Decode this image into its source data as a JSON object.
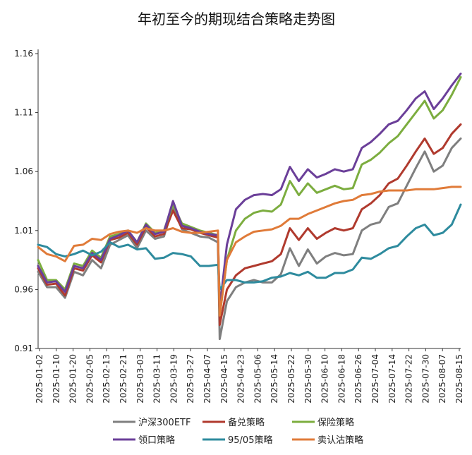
{
  "chart_data": {
    "type": "line",
    "title": "年初至今的期现结合策略走势图",
    "xlabel": "",
    "ylabel": "",
    "ylim": [
      0.91,
      1.16
    ],
    "y_ticks": [
      "0.91",
      "0.96",
      "1.01",
      "1.06",
      "1.11",
      "1.16"
    ],
    "x_ticks": [
      "2025-01-02",
      "2025-01-10",
      "2025-01-20",
      "2025-02-05",
      "2025-02-13",
      "2025-02-21",
      "2025-03-03",
      "2025-03-11",
      "2025-03-19",
      "2025-03-27",
      "2025-04-07",
      "2025-04-15",
      "2025-04-23",
      "2025-05-06",
      "2025-05-14",
      "2025-05-22",
      "2025-05-30",
      "2025-06-10",
      "2025-06-18",
      "2025-06-26",
      "2025-07-04",
      "2025-07-14",
      "2025-07-22",
      "2025-07-30",
      "2025-08-07",
      "2025-08-15"
    ],
    "grid": false,
    "legend_position": "bottom",
    "series": [
      {
        "name": "沪深300ETF",
        "color": "#7f7f7f",
        "points": [
          [
            0,
            0.975
          ],
          [
            1,
            0.962
          ],
          [
            2,
            0.962
          ],
          [
            3,
            0.953
          ],
          [
            4,
            0.975
          ],
          [
            5,
            0.972
          ],
          [
            6,
            0.985
          ],
          [
            7,
            0.978
          ],
          [
            8,
            0.998
          ],
          [
            9,
            1.002
          ],
          [
            10,
            1.006
          ],
          [
            11,
            0.995
          ],
          [
            12,
            1.01
          ],
          [
            13,
            1.003
          ],
          [
            14,
            1.005
          ],
          [
            15,
            1.03
          ],
          [
            16,
            1.011
          ],
          [
            17,
            1.008
          ],
          [
            18,
            1.005
          ],
          [
            19,
            1.004
          ],
          [
            20,
            1.0
          ],
          [
            20.2,
            0.918
          ],
          [
            21,
            0.95
          ],
          [
            22,
            0.962
          ],
          [
            23,
            0.966
          ],
          [
            24,
            0.968
          ],
          [
            25,
            0.966
          ],
          [
            26,
            0.966
          ],
          [
            27,
            0.973
          ],
          [
            28,
            0.995
          ],
          [
            29,
            0.98
          ],
          [
            30,
            0.994
          ],
          [
            31,
            0.982
          ],
          [
            32,
            0.988
          ],
          [
            33,
            0.991
          ],
          [
            34,
            0.989
          ],
          [
            35,
            0.99
          ],
          [
            36,
            1.01
          ],
          [
            37,
            1.015
          ],
          [
            38,
            1.017
          ],
          [
            39,
            1.03
          ],
          [
            40,
            1.033
          ],
          [
            41,
            1.048
          ],
          [
            42,
            1.063
          ],
          [
            43,
            1.077
          ],
          [
            44,
            1.06
          ],
          [
            45,
            1.065
          ],
          [
            46,
            1.08
          ],
          [
            47,
            1.088
          ]
        ]
      },
      {
        "name": "备兑策略",
        "color": "#b03a2e",
        "points": [
          [
            0,
            0.978
          ],
          [
            1,
            0.964
          ],
          [
            2,
            0.965
          ],
          [
            3,
            0.955
          ],
          [
            4,
            0.978
          ],
          [
            5,
            0.976
          ],
          [
            6,
            0.989
          ],
          [
            7,
            0.983
          ],
          [
            8,
            1.002
          ],
          [
            9,
            1.004
          ],
          [
            10,
            1.008
          ],
          [
            11,
            0.998
          ],
          [
            12,
            1.013
          ],
          [
            13,
            1.005
          ],
          [
            14,
            1.007
          ],
          [
            15,
            1.027
          ],
          [
            16,
            1.012
          ],
          [
            17,
            1.011
          ],
          [
            18,
            1.008
          ],
          [
            19,
            1.006
          ],
          [
            20,
            1.004
          ],
          [
            20.2,
            0.93
          ],
          [
            21,
            0.96
          ],
          [
            22,
            0.972
          ],
          [
            23,
            0.978
          ],
          [
            24,
            0.98
          ],
          [
            25,
            0.982
          ],
          [
            26,
            0.984
          ],
          [
            27,
            0.99
          ],
          [
            28,
            1.012
          ],
          [
            29,
            1.002
          ],
          [
            30,
            1.012
          ],
          [
            31,
            1.003
          ],
          [
            32,
            1.008
          ],
          [
            33,
            1.012
          ],
          [
            34,
            1.01
          ],
          [
            35,
            1.012
          ],
          [
            36,
            1.028
          ],
          [
            37,
            1.033
          ],
          [
            38,
            1.04
          ],
          [
            39,
            1.05
          ],
          [
            40,
            1.054
          ],
          [
            41,
            1.065
          ],
          [
            42,
            1.077
          ],
          [
            43,
            1.088
          ],
          [
            44,
            1.075
          ],
          [
            45,
            1.08
          ],
          [
            46,
            1.092
          ],
          [
            47,
            1.1
          ]
        ]
      },
      {
        "name": "保险策略",
        "color": "#7cad3f",
        "points": [
          [
            0,
            0.985
          ],
          [
            1,
            0.968
          ],
          [
            2,
            0.968
          ],
          [
            3,
            0.96
          ],
          [
            4,
            0.982
          ],
          [
            5,
            0.98
          ],
          [
            6,
            0.993
          ],
          [
            7,
            0.987
          ],
          [
            8,
            1.005
          ],
          [
            9,
            1.007
          ],
          [
            10,
            1.01
          ],
          [
            11,
            1.0
          ],
          [
            12,
            1.016
          ],
          [
            13,
            1.008
          ],
          [
            14,
            1.01
          ],
          [
            15,
            1.032
          ],
          [
            16,
            1.016
          ],
          [
            17,
            1.013
          ],
          [
            18,
            1.01
          ],
          [
            19,
            1.008
          ],
          [
            20,
            1.006
          ],
          [
            20.2,
            0.938
          ],
          [
            21,
            0.985
          ],
          [
            22,
            1.01
          ],
          [
            23,
            1.02
          ],
          [
            24,
            1.025
          ],
          [
            25,
            1.027
          ],
          [
            26,
            1.026
          ],
          [
            27,
            1.032
          ],
          [
            28,
            1.052
          ],
          [
            29,
            1.04
          ],
          [
            30,
            1.05
          ],
          [
            31,
            1.042
          ],
          [
            32,
            1.045
          ],
          [
            33,
            1.048
          ],
          [
            34,
            1.045
          ],
          [
            35,
            1.046
          ],
          [
            36,
            1.066
          ],
          [
            37,
            1.07
          ],
          [
            38,
            1.076
          ],
          [
            39,
            1.084
          ],
          [
            40,
            1.09
          ],
          [
            41,
            1.1
          ],
          [
            42,
            1.11
          ],
          [
            43,
            1.12
          ],
          [
            44,
            1.105
          ],
          [
            45,
            1.112
          ],
          [
            46,
            1.125
          ],
          [
            47,
            1.14
          ]
        ]
      },
      {
        "name": "领口策略",
        "color": "#6b3f99",
        "points": [
          [
            0,
            0.98
          ],
          [
            1,
            0.966
          ],
          [
            2,
            0.967
          ],
          [
            3,
            0.958
          ],
          [
            4,
            0.98
          ],
          [
            5,
            0.978
          ],
          [
            6,
            0.991
          ],
          [
            7,
            0.985
          ],
          [
            8,
            1.003
          ],
          [
            9,
            1.006
          ],
          [
            10,
            1.01
          ],
          [
            11,
            1.0
          ],
          [
            12,
            1.015
          ],
          [
            13,
            1.007
          ],
          [
            14,
            1.009
          ],
          [
            15,
            1.035
          ],
          [
            16,
            1.014
          ],
          [
            17,
            1.012
          ],
          [
            18,
            1.009
          ],
          [
            19,
            1.007
          ],
          [
            20,
            1.006
          ],
          [
            20.2,
            0.944
          ],
          [
            21,
            0.998
          ],
          [
            22,
            1.028
          ],
          [
            23,
            1.036
          ],
          [
            24,
            1.04
          ],
          [
            25,
            1.041
          ],
          [
            26,
            1.04
          ],
          [
            27,
            1.045
          ],
          [
            28,
            1.064
          ],
          [
            29,
            1.052
          ],
          [
            30,
            1.062
          ],
          [
            31,
            1.055
          ],
          [
            32,
            1.058
          ],
          [
            33,
            1.062
          ],
          [
            34,
            1.06
          ],
          [
            35,
            1.062
          ],
          [
            36,
            1.08
          ],
          [
            37,
            1.085
          ],
          [
            38,
            1.092
          ],
          [
            39,
            1.1
          ],
          [
            40,
            1.103
          ],
          [
            41,
            1.112
          ],
          [
            42,
            1.122
          ],
          [
            43,
            1.128
          ],
          [
            44,
            1.113
          ],
          [
            45,
            1.122
          ],
          [
            46,
            1.133
          ],
          [
            47,
            1.143
          ]
        ]
      },
      {
        "name": "95/05策略",
        "color": "#2e8b9e",
        "points": [
          [
            0,
            0.998
          ],
          [
            1,
            0.996
          ],
          [
            2,
            0.99
          ],
          [
            3,
            0.988
          ],
          [
            4,
            0.99
          ],
          [
            5,
            0.993
          ],
          [
            6,
            0.989
          ],
          [
            7,
            0.992
          ],
          [
            8,
            1.0
          ],
          [
            9,
            0.996
          ],
          [
            10,
            0.998
          ],
          [
            11,
            0.994
          ],
          [
            12,
            0.995
          ],
          [
            13,
            0.986
          ],
          [
            14,
            0.987
          ],
          [
            15,
            0.991
          ],
          [
            16,
            0.99
          ],
          [
            17,
            0.988
          ],
          [
            18,
            0.98
          ],
          [
            19,
            0.98
          ],
          [
            20,
            0.981
          ],
          [
            20.2,
            0.96
          ],
          [
            21,
            0.968
          ],
          [
            22,
            0.968
          ],
          [
            23,
            0.966
          ],
          [
            24,
            0.966
          ],
          [
            25,
            0.967
          ],
          [
            26,
            0.97
          ],
          [
            27,
            0.971
          ],
          [
            28,
            0.974
          ],
          [
            29,
            0.972
          ],
          [
            30,
            0.975
          ],
          [
            31,
            0.97
          ],
          [
            32,
            0.97
          ],
          [
            33,
            0.974
          ],
          [
            34,
            0.974
          ],
          [
            35,
            0.977
          ],
          [
            36,
            0.987
          ],
          [
            37,
            0.986
          ],
          [
            38,
            0.99
          ],
          [
            39,
            0.995
          ],
          [
            40,
            0.997
          ],
          [
            41,
            1.005
          ],
          [
            42,
            1.012
          ],
          [
            43,
            1.015
          ],
          [
            44,
            1.006
          ],
          [
            45,
            1.008
          ],
          [
            46,
            1.015
          ],
          [
            47,
            1.032
          ]
        ]
      },
      {
        "name": "卖认沽策略",
        "color": "#e07b39",
        "points": [
          [
            0,
            0.996
          ],
          [
            1,
            0.99
          ],
          [
            2,
            0.988
          ],
          [
            3,
            0.984
          ],
          [
            4,
            0.997
          ],
          [
            5,
            0.998
          ],
          [
            6,
            1.003
          ],
          [
            7,
            1.002
          ],
          [
            8,
            1.007
          ],
          [
            9,
            1.009
          ],
          [
            10,
            1.01
          ],
          [
            11,
            1.008
          ],
          [
            12,
            1.012
          ],
          [
            13,
            1.01
          ],
          [
            14,
            1.01
          ],
          [
            15,
            1.012
          ],
          [
            16,
            1.009
          ],
          [
            17,
            1.008
          ],
          [
            18,
            1.008
          ],
          [
            19,
            1.009
          ],
          [
            20,
            1.01
          ],
          [
            20.2,
            0.938
          ],
          [
            21,
            0.985
          ],
          [
            22,
            1.0
          ],
          [
            23,
            1.005
          ],
          [
            24,
            1.009
          ],
          [
            25,
            1.01
          ],
          [
            26,
            1.011
          ],
          [
            27,
            1.014
          ],
          [
            28,
            1.02
          ],
          [
            29,
            1.02
          ],
          [
            30,
            1.024
          ],
          [
            31,
            1.027
          ],
          [
            32,
            1.03
          ],
          [
            33,
            1.033
          ],
          [
            34,
            1.035
          ],
          [
            35,
            1.036
          ],
          [
            36,
            1.04
          ],
          [
            37,
            1.041
          ],
          [
            38,
            1.043
          ],
          [
            39,
            1.044
          ],
          [
            40,
            1.044
          ],
          [
            41,
            1.044
          ],
          [
            42,
            1.045
          ],
          [
            43,
            1.045
          ],
          [
            44,
            1.045
          ],
          [
            45,
            1.046
          ],
          [
            46,
            1.047
          ],
          [
            47,
            1.047
          ]
        ]
      }
    ]
  }
}
